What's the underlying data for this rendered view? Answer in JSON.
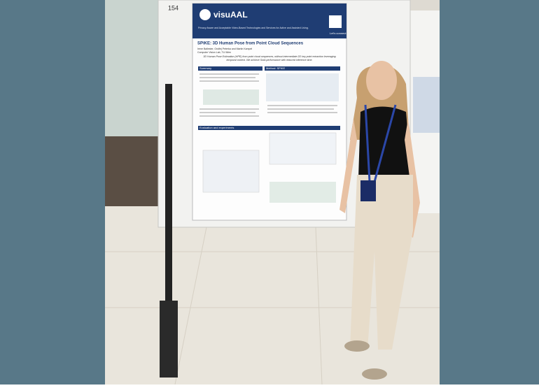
{
  "poster": {
    "board_number": "154",
    "logo": "visuAAL",
    "logo_tagline": "Privacy Aware and Acceptable Video-Based Technologies and Services for Active and Assisted Living.",
    "qr_caption": "Let's connect",
    "title": "SPiKE: 3D Human Pose from Point Cloud Sequences",
    "authors": "Irene Ballester, Ondřej Peterka and Martin Kampel",
    "affiliation": "Computer Vision Lab, TU Wien",
    "abstract": "3D Human Pose Estimation (HPE) from point cloud sequences, without intermediate 2D key point extraction leveraging temporal context. We achieve SotA performance with reduced inference time.",
    "sections": [
      "Summary",
      "Method: SPiKE",
      "Evaluation and experiments"
    ]
  }
}
